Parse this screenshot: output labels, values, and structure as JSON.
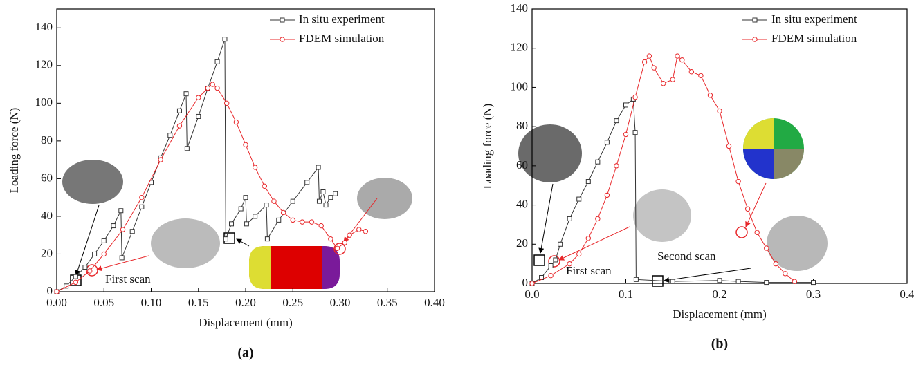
{
  "chart_data": [
    {
      "type": "line",
      "panel_label": "(a)",
      "x_label": "Displacement (mm)",
      "y_label": "Loading force (N)",
      "xlim": [
        0,
        0.4
      ],
      "ylim": [
        0,
        150
      ],
      "xticks": [
        {
          "value": 0,
          "label": "0.00"
        },
        {
          "value": 0.05,
          "label": "0.05"
        },
        {
          "value": 0.1,
          "label": "0.10"
        },
        {
          "value": 0.15,
          "label": "0.15"
        },
        {
          "value": 0.2,
          "label": "0.20"
        },
        {
          "value": 0.25,
          "label": "0.25"
        },
        {
          "value": 0.3,
          "label": "0.30"
        },
        {
          "value": 0.35,
          "label": "0.35"
        },
        {
          "value": 0.4,
          "label": "0.40"
        }
      ],
      "yticks": [
        0,
        20,
        40,
        60,
        80,
        100,
        120,
        140
      ],
      "legend": "top-right",
      "annotations": [
        "First scan"
      ],
      "series": [
        {
          "name": "In situ experiment",
          "color": "#333333",
          "marker": "square",
          "x": [
            0,
            0.01,
            0.02,
            0.03,
            0.04,
            0.05,
            0.06,
            0.068,
            0.069,
            0.08,
            0.09,
            0.1,
            0.11,
            0.12,
            0.13,
            0.137,
            0.138,
            0.15,
            0.16,
            0.17,
            0.178,
            0.179,
            0.185,
            0.195,
            0.2,
            0.201,
            0.21,
            0.222,
            0.223,
            0.235,
            0.25,
            0.265,
            0.277,
            0.278,
            0.282,
            0.285,
            0.29,
            0.295
          ],
          "values": [
            0,
            3,
            8,
            13,
            20,
            27,
            35,
            43,
            18,
            32,
            45,
            58,
            71,
            83,
            96,
            105,
            76,
            93,
            108,
            122,
            134,
            28,
            36,
            44,
            50,
            36,
            40,
            46,
            28,
            38,
            48,
            58,
            66,
            48,
            53,
            46,
            50,
            52
          ]
        },
        {
          "name": "FDEM simulation",
          "color": "#e8272a",
          "marker": "circle",
          "x": [
            0,
            0.02,
            0.035,
            0.05,
            0.07,
            0.09,
            0.11,
            0.13,
            0.15,
            0.16,
            0.165,
            0.17,
            0.18,
            0.19,
            0.2,
            0.21,
            0.22,
            0.23,
            0.24,
            0.25,
            0.26,
            0.27,
            0.28,
            0.29,
            0.297,
            0.305,
            0.31,
            0.32,
            0.327
          ],
          "values": [
            0,
            5,
            11,
            20,
            33,
            50,
            70,
            88,
            103,
            108,
            110,
            108,
            100,
            90,
            78,
            66,
            56,
            48,
            42,
            38,
            37,
            37,
            35,
            28,
            23,
            26,
            30,
            33,
            32
          ]
        }
      ]
    },
    {
      "type": "line",
      "panel_label": "(b)",
      "x_label": "Displacement (mm)",
      "y_label": "Loading force (N)",
      "xlim": [
        0,
        0.4
      ],
      "ylim": [
        0,
        140
      ],
      "xticks": [
        {
          "value": 0,
          "label": "0.0"
        },
        {
          "value": 0.1,
          "label": "0.1"
        },
        {
          "value": 0.2,
          "label": "0.2"
        },
        {
          "value": 0.3,
          "label": "0.3"
        },
        {
          "value": 0.4,
          "label": "0.4"
        }
      ],
      "yticks": [
        0,
        20,
        40,
        60,
        80,
        100,
        120,
        140
      ],
      "legend": "top-right",
      "annotations": [
        "First scan",
        "Second scan"
      ],
      "series": [
        {
          "name": "In situ experiment",
          "color": "#333333",
          "marker": "square",
          "x": [
            0,
            0.01,
            0.02,
            0.025,
            0.03,
            0.04,
            0.05,
            0.06,
            0.07,
            0.08,
            0.09,
            0.1,
            0.108,
            0.11,
            0.111,
            0.15,
            0.2,
            0.22,
            0.25,
            0.3
          ],
          "values": [
            0,
            3,
            9,
            12,
            20,
            33,
            43,
            52,
            62,
            72,
            83,
            91,
            94,
            77,
            2,
            1,
            1.5,
            1,
            0.5,
            0.5
          ]
        },
        {
          "name": "FDEM simulation",
          "color": "#e8272a",
          "marker": "circle",
          "x": [
            0,
            0.02,
            0.04,
            0.05,
            0.06,
            0.07,
            0.08,
            0.09,
            0.1,
            0.11,
            0.12,
            0.125,
            0.13,
            0.14,
            0.15,
            0.155,
            0.16,
            0.17,
            0.18,
            0.19,
            0.2,
            0.21,
            0.22,
            0.23,
            0.24,
            0.25,
            0.26,
            0.27,
            0.28
          ],
          "values": [
            0,
            4,
            10,
            15,
            23,
            33,
            45,
            60,
            76,
            95,
            113,
            116,
            110,
            102,
            104,
            116,
            114,
            108,
            106,
            96,
            88,
            70,
            52,
            38,
            26,
            18,
            10,
            5,
            1
          ]
        }
      ]
    }
  ]
}
